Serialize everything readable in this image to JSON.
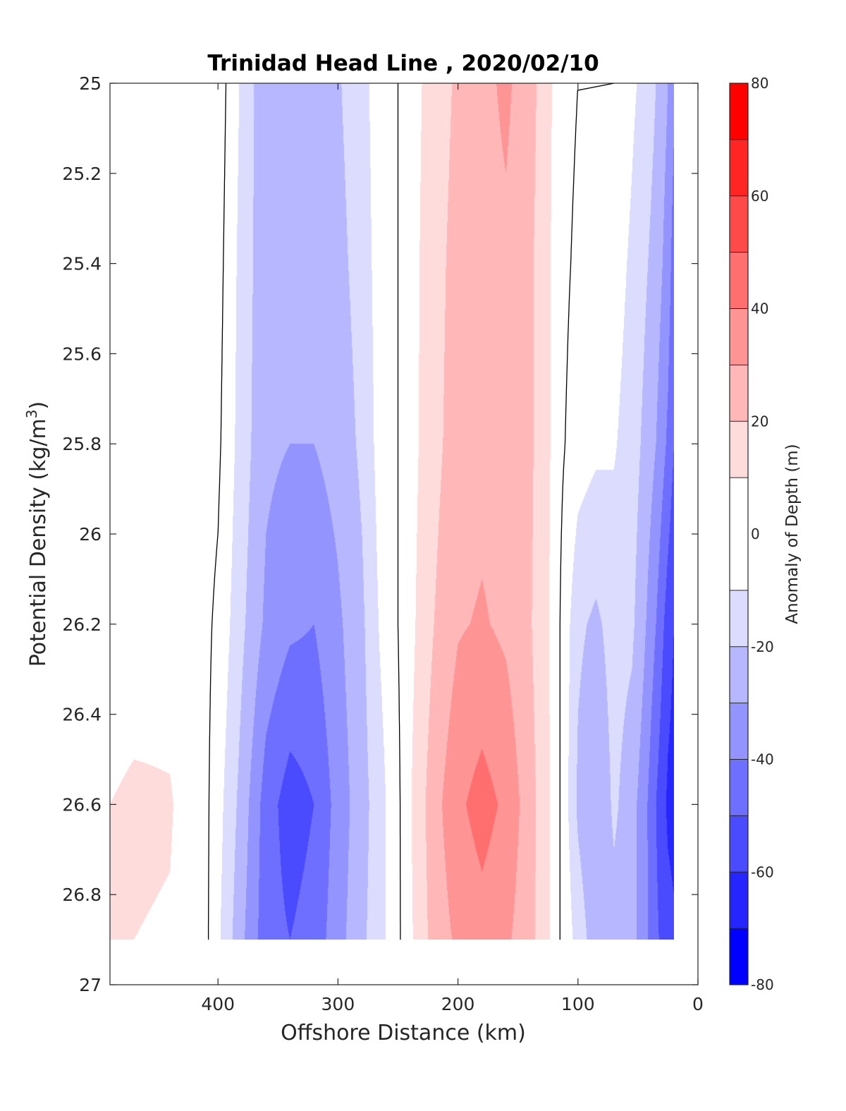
{
  "chart_data": {
    "type": "heatmap",
    "title": "Trinidad Head Line , 2020/02/10",
    "xlabel": "Offshore Distance (km)",
    "ylabel_main": "Potential Density (kg/m",
    "ylabel_sup": "3",
    "ylabel_end": ")",
    "colorbar_label": "Anomaly of Depth (m)",
    "xlim": [
      490,
      0
    ],
    "x_reversed": true,
    "ylim": [
      25,
      27
    ],
    "y_reversed": true,
    "xticks": [
      400,
      300,
      200,
      100,
      0
    ],
    "xtick_labels": [
      "400",
      "300",
      "200",
      "100",
      "0"
    ],
    "yticks": [
      25,
      25.2,
      25.4,
      25.6,
      25.8,
      26,
      26.2,
      26.4,
      26.6,
      26.8,
      27
    ],
    "ytick_labels": [
      "25",
      "25.2",
      "25.4",
      "25.6",
      "25.8",
      "26",
      "26.2",
      "26.4",
      "26.6",
      "26.8",
      "27"
    ],
    "colorbar": {
      "range": [
        -80,
        80
      ],
      "ticks": [
        80,
        60,
        40,
        20,
        0,
        -20,
        -40,
        -60,
        -80
      ],
      "tick_labels": [
        "80",
        "60",
        "40",
        "20",
        "0",
        "-20",
        "-40",
        "-60",
        "-80"
      ],
      "levels": [
        {
          "from": 70,
          "to": 80,
          "color": "#ff0000"
        },
        {
          "from": 60,
          "to": 70,
          "color": "#ff2525"
        },
        {
          "from": 50,
          "to": 60,
          "color": "#ff4a4a"
        },
        {
          "from": 40,
          "to": 50,
          "color": "#ff6f6f"
        },
        {
          "from": 30,
          "to": 40,
          "color": "#ff9494"
        },
        {
          "from": 20,
          "to": 30,
          "color": "#ffb7b7"
        },
        {
          "from": 10,
          "to": 20,
          "color": "#ffdcdc"
        },
        {
          "from": -10,
          "to": 10,
          "color": "#ffffff"
        },
        {
          "from": -20,
          "to": -10,
          "color": "#dcdcff"
        },
        {
          "from": -30,
          "to": -20,
          "color": "#b7b7ff"
        },
        {
          "from": -40,
          "to": -30,
          "color": "#9494ff"
        },
        {
          "from": -50,
          "to": -40,
          "color": "#6f6fff"
        },
        {
          "from": -60,
          "to": -50,
          "color": "#4a4aff"
        },
        {
          "from": -70,
          "to": -60,
          "color": "#2525ff"
        },
        {
          "from": -80,
          "to": -70,
          "color": "#0000ff"
        }
      ]
    },
    "data_y_extent": [
      25,
      26.9
    ],
    "data_x_extent": [
      490,
      20
    ],
    "grid": false,
    "zero_contour_color": "#000000",
    "anomaly_profile": {
      "x": [
        490,
        470,
        440,
        420,
        410,
        400,
        380,
        360,
        340,
        320,
        300,
        280,
        265,
        250,
        240,
        220,
        200,
        180,
        160,
        140,
        125,
        115,
        100,
        85,
        70,
        55,
        45,
        35,
        25,
        20
      ],
      "sigma": [
        25,
        25.4,
        25.8,
        26.2,
        26.6,
        26.9
      ],
      "values": [
        [
          2,
          3,
          4,
          5,
          8,
          6,
          -12,
          -28,
          -26,
          -25,
          -21,
          -14,
          -4,
          0,
          6,
          14,
          22,
          27,
          32,
          24,
          13,
          4,
          0,
          0,
          0,
          -8,
          -13,
          -20,
          -30,
          -38
        ],
        [
          2,
          3,
          4,
          5,
          6,
          4,
          -14,
          -27,
          -28,
          -27,
          -23,
          -16,
          -5,
          0,
          6,
          16,
          24,
          26,
          28,
          22,
          12,
          3,
          -2,
          -3,
          -5,
          -12,
          -18,
          -24,
          -35,
          -45
        ],
        [
          2,
          3,
          4,
          5,
          4,
          2,
          -15,
          -28,
          -30,
          -30,
          -26,
          -18,
          -6,
          0,
          6,
          17,
          25,
          27,
          26,
          22,
          12,
          2,
          -5,
          -8,
          -9,
          -15,
          -22,
          -30,
          -42,
          -50
        ],
        [
          3,
          4,
          5,
          2,
          2,
          -2,
          -18,
          -32,
          -38,
          -40,
          -32,
          -22,
          -9,
          0,
          7,
          20,
          29,
          31,
          28,
          21,
          11,
          0,
          -18,
          -22,
          -16,
          -18,
          -28,
          -40,
          -55,
          -60
        ],
        [
          10,
          12,
          11,
          4,
          2,
          -6,
          -24,
          -45,
          -55,
          -50,
          -36,
          -24,
          -14,
          -2,
          9,
          26,
          38,
          44,
          38,
          24,
          12,
          0,
          -22,
          -30,
          -18,
          -26,
          -36,
          -50,
          -62,
          -64
        ],
        [
          10,
          10,
          9,
          4,
          2,
          -8,
          -28,
          -46,
          -50,
          -46,
          -34,
          -22,
          -14,
          -2,
          8,
          24,
          32,
          36,
          32,
          23,
          12,
          0,
          -14,
          -26,
          -24,
          -26,
          -36,
          -48,
          -56,
          -58
        ]
      ]
    }
  }
}
